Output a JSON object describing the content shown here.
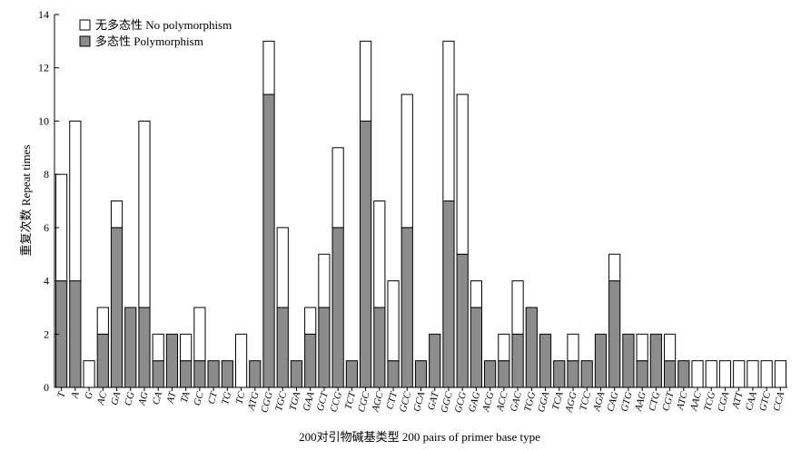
{
  "chart_data": {
    "type": "bar",
    "stacked": true,
    "xlabel": "200对引物碱基类型 200 pairs of primer base type",
    "ylabel": "重复次数 Repeat times",
    "ylim": [
      0,
      14
    ],
    "yticks": [
      0,
      2,
      4,
      6,
      8,
      10,
      12,
      14
    ],
    "legend_position": "top-left",
    "categories": [
      "T",
      "A",
      "G",
      "AC",
      "GA",
      "CG",
      "AG",
      "CA",
      "AT",
      "TA",
      "GC",
      "CT",
      "TG",
      "TC",
      "ATG",
      "CGG",
      "TGC",
      "TGA",
      "GAA",
      "GCT",
      "CCG",
      "TCT",
      "CGC",
      "AGC",
      "CTT",
      "GCC",
      "GCA",
      "GAT",
      "GGC",
      "GCG",
      "GAG",
      "ACG",
      "ACC",
      "GAC",
      "TGG",
      "GGA",
      "TCA",
      "AGG",
      "TCC",
      "AGA",
      "CAG",
      "GTG",
      "AAG",
      "CTG",
      "CGT",
      "ATC",
      "AAC",
      "TCG",
      "CGA",
      "ATT",
      "CAA",
      "GTC",
      "CCA"
    ],
    "series": [
      {
        "name": "多态性 Polymorphism",
        "color": "#8c8c8c",
        "values": [
          4,
          4,
          0,
          2,
          6,
          3,
          3,
          1,
          2,
          1,
          1,
          1,
          1,
          0,
          1,
          11,
          3,
          1,
          2,
          3,
          6,
          1,
          10,
          3,
          1,
          6,
          1,
          2,
          7,
          5,
          3,
          1,
          1,
          2,
          3,
          2,
          1,
          1,
          1,
          2,
          4,
          2,
          1,
          2,
          1,
          1,
          0,
          0,
          0,
          0,
          0,
          0,
          0
        ]
      },
      {
        "name": "无多态性 No polymorphism",
        "color": "#ffffff",
        "values": [
          4,
          6,
          1,
          1,
          1,
          0,
          7,
          1,
          0,
          1,
          2,
          0,
          0,
          2,
          0,
          2,
          3,
          0,
          1,
          2,
          3,
          0,
          3,
          4,
          3,
          5,
          0,
          0,
          6,
          6,
          1,
          0,
          1,
          2,
          0,
          0,
          0,
          1,
          0,
          0,
          1,
          0,
          1,
          0,
          1,
          0,
          1,
          1,
          1,
          1,
          1,
          1,
          1
        ]
      }
    ],
    "legend": [
      {
        "label": "无多态性 No polymorphism",
        "color": "#ffffff"
      },
      {
        "label": "多态性 Polymorphism",
        "color": "#8c8c8c"
      }
    ]
  }
}
